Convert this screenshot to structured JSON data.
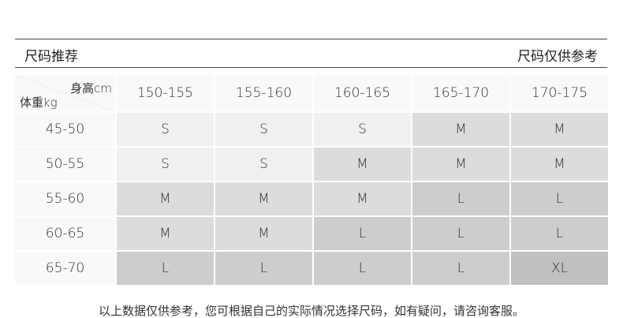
{
  "header": {
    "left_title": "尺码推荐",
    "right_title": "尺码仅供参考"
  },
  "table": {
    "corner_height_label": "身高cm",
    "corner_weight_label": "体重kg",
    "columns": [
      "150-155",
      "155-160",
      "160-165",
      "165-170",
      "170-175"
    ],
    "rows": [
      {
        "label": "45-50",
        "sizes": [
          "S",
          "S",
          "S",
          "M",
          "M"
        ]
      },
      {
        "label": "50-55",
        "sizes": [
          "S",
          "S",
          "M",
          "M",
          "M"
        ]
      },
      {
        "label": "55-60",
        "sizes": [
          "M",
          "M",
          "M",
          "L",
          "L"
        ]
      },
      {
        "label": "60-65",
        "sizes": [
          "M",
          "M",
          "L",
          "L",
          "L"
        ]
      },
      {
        "label": "65-70",
        "sizes": [
          "L",
          "L",
          "L",
          "L",
          "XL"
        ]
      }
    ],
    "size_colors": {
      "S": "#f0f0f0",
      "M": "#dcdcdc",
      "L": "#cdcdcd",
      "XL": "#c0c0c0"
    }
  },
  "footer": "以上数据仅供参考，您可根据自己的实际情况选择尺码，如有疑问，请咨询客服。"
}
